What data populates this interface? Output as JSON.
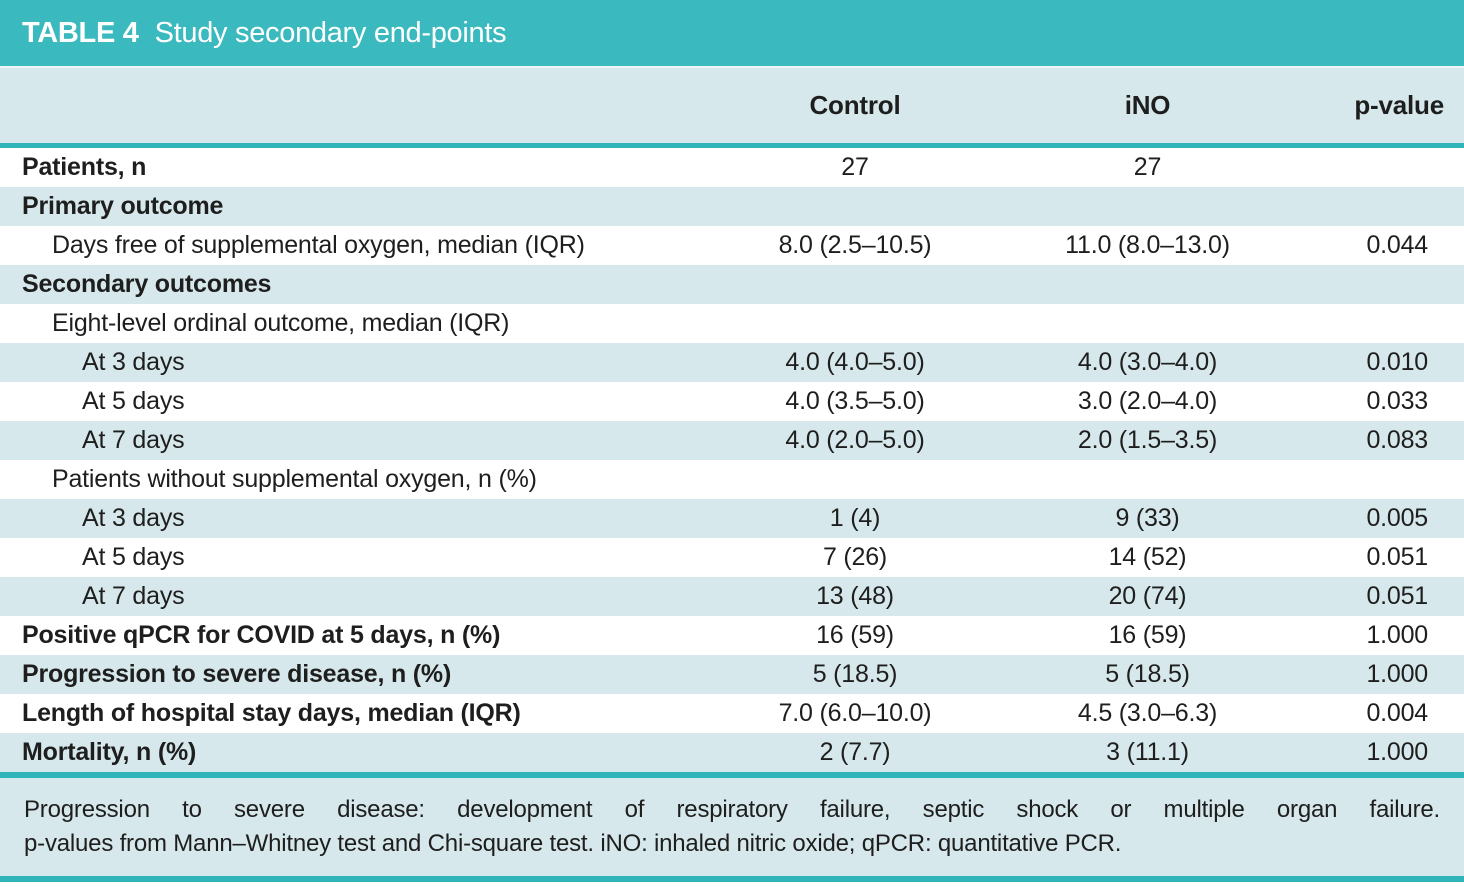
{
  "table": {
    "title_label": "TABLE 4",
    "title_text": "Study secondary end-points",
    "columns": {
      "control": "Control",
      "ino": "iNO",
      "pvalue": "p-value"
    },
    "rows": [
      {
        "label": "Patients, n",
        "indent": 0,
        "bold": true,
        "control": "27",
        "ino": "27",
        "p": ""
      },
      {
        "label": "Primary outcome",
        "indent": 0,
        "bold": true,
        "control": "",
        "ino": "",
        "p": ""
      },
      {
        "label": "Days free of supplemental oxygen, median (IQR)",
        "indent": 1,
        "bold": false,
        "control": "8.0 (2.5–10.5)",
        "ino": "11.0 (8.0–13.0)",
        "p": "0.044"
      },
      {
        "label": "Secondary outcomes",
        "indent": 0,
        "bold": true,
        "control": "",
        "ino": "",
        "p": ""
      },
      {
        "label": "Eight-level ordinal outcome, median (IQR)",
        "indent": 1,
        "bold": false,
        "control": "",
        "ino": "",
        "p": ""
      },
      {
        "label": "At 3 days",
        "indent": 2,
        "bold": false,
        "control": "4.0 (4.0–5.0)",
        "ino": "4.0 (3.0–4.0)",
        "p": "0.010"
      },
      {
        "label": "At 5 days",
        "indent": 2,
        "bold": false,
        "control": "4.0 (3.5–5.0)",
        "ino": "3.0 (2.0–4.0)",
        "p": "0.033"
      },
      {
        "label": "At 7 days",
        "indent": 2,
        "bold": false,
        "control": "4.0 (2.0–5.0)",
        "ino": "2.0 (1.5–3.5)",
        "p": "0.083"
      },
      {
        "label": "Patients without supplemental oxygen, n (%)",
        "indent": 1,
        "bold": false,
        "control": "",
        "ino": "",
        "p": ""
      },
      {
        "label": "At 3 days",
        "indent": 2,
        "bold": false,
        "control": "1 (4)",
        "ino": "9 (33)",
        "p": "0.005"
      },
      {
        "label": "At 5 days",
        "indent": 2,
        "bold": false,
        "control": "7 (26)",
        "ino": "14 (52)",
        "p": "0.051"
      },
      {
        "label": "At 7 days",
        "indent": 2,
        "bold": false,
        "control": "13 (48)",
        "ino": "20 (74)",
        "p": "0.051"
      },
      {
        "label": "Positive qPCR for COVID at 5 days, n (%)",
        "indent": 0,
        "bold": true,
        "control": "16 (59)",
        "ino": "16 (59)",
        "p": "1.000"
      },
      {
        "label": "Progression to severe disease, n (%)",
        "indent": 0,
        "bold": true,
        "control": "5 (18.5)",
        "ino": "5 (18.5)",
        "p": "1.000"
      },
      {
        "label": "Length of hospital stay days, median (IQR)",
        "indent": 0,
        "bold": true,
        "control": "7.0 (6.0–10.0)",
        "ino": "4.5 (3.0–6.3)",
        "p": "0.004"
      },
      {
        "label": "Mortality, n (%)",
        "indent": 0,
        "bold": true,
        "control": "2 (7.7)",
        "ino": "3 (11.1)",
        "p": "1.000"
      }
    ],
    "footnote_line1": "Progression to severe disease: development of respiratory failure, septic shock or multiple organ failure.",
    "footnote_line2": "p-values from Mann–Whitney test and Chi-square test. iNO: inhaled nitric oxide; qPCR: quantitative PCR.",
    "colors": {
      "title_bar": "#3ab9bf",
      "row_stripe": "#d6e8eb",
      "rule": "#2fb4ba",
      "text": "#1e1e1e"
    }
  }
}
